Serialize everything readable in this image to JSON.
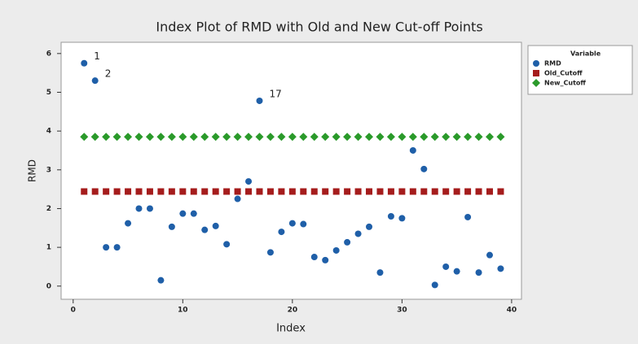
{
  "chart_data": {
    "type": "scatter",
    "title": "Index Plot of RMD with Old and New Cut-off Points",
    "x_label": "Index",
    "y_label": "RMD",
    "legend_title": "Variable",
    "legend": "outside-right",
    "x": [
      1,
      2,
      3,
      4,
      5,
      6,
      7,
      8,
      9,
      10,
      11,
      12,
      13,
      14,
      15,
      16,
      17,
      18,
      19,
      20,
      21,
      22,
      23,
      24,
      25,
      26,
      27,
      28,
      29,
      30,
      31,
      32,
      33,
      34,
      35,
      36,
      37,
      38,
      39
    ],
    "series": [
      {
        "name": "RMD",
        "color": "#1f5fa8",
        "marker": "circle",
        "values": [
          5.75,
          5.3,
          1.0,
          1.0,
          1.62,
          2.0,
          2.0,
          0.15,
          1.53,
          1.87,
          1.87,
          1.45,
          1.55,
          1.08,
          2.25,
          2.7,
          4.78,
          0.87,
          1.4,
          1.62,
          1.6,
          0.75,
          0.67,
          0.92,
          1.13,
          1.35,
          1.53,
          0.35,
          1.8,
          1.75,
          3.5,
          3.02,
          0.03,
          0.5,
          0.38,
          1.78,
          0.35,
          0.8,
          0.45
        ]
      },
      {
        "name": "Old_Cutoff",
        "color": "#a51c1c",
        "marker": "square",
        "values": [
          2.44,
          2.44,
          2.44,
          2.44,
          2.44,
          2.44,
          2.44,
          2.44,
          2.44,
          2.44,
          2.44,
          2.44,
          2.44,
          2.44,
          2.44,
          2.44,
          2.44,
          2.44,
          2.44,
          2.44,
          2.44,
          2.44,
          2.44,
          2.44,
          2.44,
          2.44,
          2.44,
          2.44,
          2.44,
          2.44,
          2.44,
          2.44,
          2.44,
          2.44,
          2.44,
          2.44,
          2.44,
          2.44,
          2.44
        ]
      },
      {
        "name": "New_Cutoff",
        "color": "#2a9a2a",
        "marker": "diamond",
        "values": [
          3.85,
          3.85,
          3.85,
          3.85,
          3.85,
          3.85,
          3.85,
          3.85,
          3.85,
          3.85,
          3.85,
          3.85,
          3.85,
          3.85,
          3.85,
          3.85,
          3.85,
          3.85,
          3.85,
          3.85,
          3.85,
          3.85,
          3.85,
          3.85,
          3.85,
          3.85,
          3.85,
          3.85,
          3.85,
          3.85,
          3.85,
          3.85,
          3.85,
          3.85,
          3.85,
          3.85,
          3.85,
          3.85,
          3.85
        ]
      }
    ],
    "annotations": [
      {
        "text": "1",
        "x": 1
      },
      {
        "text": "2",
        "x": 2
      },
      {
        "text": "17",
        "x": 17
      }
    ],
    "xlim": [
      -1.1,
      40.9
    ],
    "xticks": [
      0,
      10,
      20,
      30,
      40
    ],
    "ylim": [
      -0.34,
      6.29
    ],
    "yticks": [
      0,
      1,
      2,
      3,
      4,
      5,
      6
    ]
  }
}
